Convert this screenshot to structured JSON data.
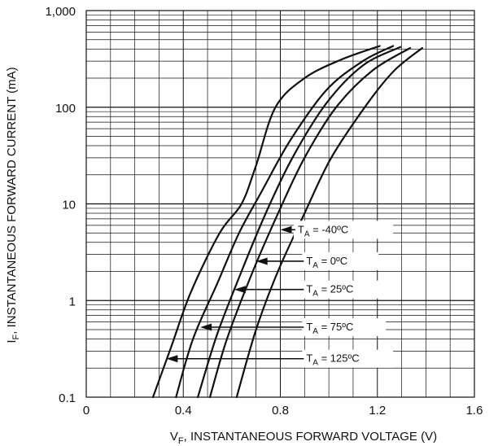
{
  "chart_data": {
    "type": "line",
    "xlabel": "V",
    "xlabel_sub": "F",
    "xlabel_rest": ", INSTANTANEOUS FORWARD VOLTAGE (V)",
    "ylabel": "I",
    "ylabel_sub": "F",
    "ylabel_rest": ", INSTANTANEOUS FORWARD CURRENT (mA)",
    "xlim": [
      0,
      1.6
    ],
    "ylim": [
      0.1,
      1000
    ],
    "y_scale": "log",
    "grid": true,
    "x_ticks": [
      {
        "value": 0,
        "label": "0"
      },
      {
        "value": 0.4,
        "label": "0.4"
      },
      {
        "value": 0.8,
        "label": "0.8"
      },
      {
        "value": 1.2,
        "label": "1.2"
      },
      {
        "value": 1.6,
        "label": "1.6"
      }
    ],
    "y_ticks": [
      {
        "value": 0.1,
        "label": "0.1"
      },
      {
        "value": 1,
        "label": "1"
      },
      {
        "value": 10,
        "label": "10"
      },
      {
        "value": 100,
        "label": "100"
      },
      {
        "value": 1000,
        "label": "1,000"
      }
    ],
    "series": [
      {
        "name": "T_A = 125ºC",
        "label_main": "T",
        "label_sub": "A",
        "label_rest": " = 125ºC",
        "x": [
          0.275,
          0.35,
          0.43,
          0.55,
          0.64,
          0.7,
          0.78,
          0.9,
          1.05,
          1.21
        ],
        "y": [
          0.1,
          0.33,
          1.2,
          5,
          10,
          25,
          100,
          200,
          310,
          430
        ]
      },
      {
        "name": "T_A = 75ºC",
        "label_main": "T",
        "label_sub": "A",
        "label_rest": " = 75ºC",
        "x": [
          0.37,
          0.44,
          0.54,
          0.63,
          0.72,
          0.84,
          0.99,
          1.14,
          1.265
        ],
        "y": [
          0.1,
          0.4,
          1.5,
          5,
          13,
          45,
          150,
          300,
          430
        ]
      },
      {
        "name": "T_A = 25ºC",
        "label_main": "T",
        "label_sub": "A",
        "label_rest": " = 25ºC",
        "x": [
          0.46,
          0.54,
          0.64,
          0.74,
          0.85,
          0.99,
          1.14,
          1.295
        ],
        "y": [
          0.1,
          0.45,
          2,
          8,
          30,
          110,
          270,
          420
        ]
      },
      {
        "name": "T_A = 0ºC",
        "label_main": "T",
        "label_sub": "A",
        "label_rest": " = 0ºC",
        "x": [
          0.51,
          0.58,
          0.69,
          0.8,
          0.9,
          1.03,
          1.18,
          1.335
        ],
        "y": [
          0.1,
          0.4,
          2.1,
          9,
          30,
          100,
          240,
          410
        ]
      },
      {
        "name": "T_A = -40ºC",
        "label_main": "T",
        "label_sub": "A",
        "label_rest": " = -40ºC",
        "x": [
          0.62,
          0.7,
          0.79,
          0.9,
          1.01,
          1.16,
          1.27,
          1.385
        ],
        "y": [
          0.1,
          0.5,
          2,
          8,
          30,
          110,
          240,
          410
        ]
      }
    ],
    "annotations": [
      {
        "series": 4,
        "box_x": [
          0.855,
          1.265
        ],
        "y": 5.4,
        "arrow_to_x": 0.8
      },
      {
        "series": 3,
        "box_x": [
          0.89,
          1.205
        ],
        "y": 2.55,
        "arrow_to_x": 0.7
      },
      {
        "series": 2,
        "box_x": [
          0.89,
          1.235
        ],
        "y": 1.3,
        "arrow_to_x": 0.61
      },
      {
        "series": 1,
        "box_x": [
          0.89,
          1.235
        ],
        "y": 0.53,
        "arrow_to_x": 0.47
      },
      {
        "series": 0,
        "box_x": [
          0.89,
          1.265
        ],
        "y": 0.25,
        "arrow_to_x": 0.33
      }
    ]
  }
}
